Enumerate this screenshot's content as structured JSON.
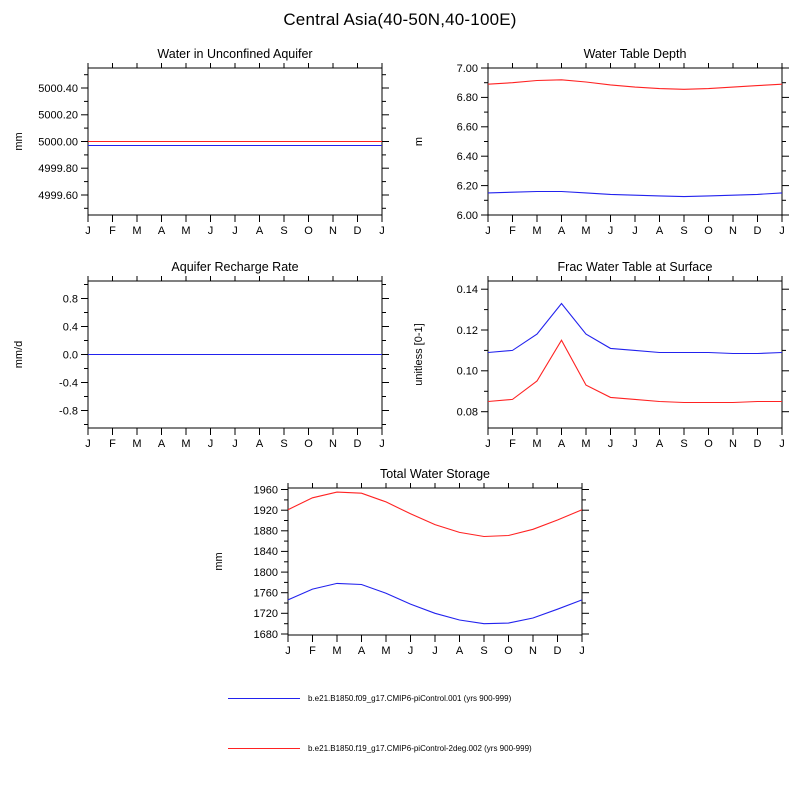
{
  "figure_title": "Central Asia(40-50N,40-100E)",
  "colors": {
    "blue": "#2222ee",
    "red": "#ff2222",
    "axis": "#000000",
    "background": "#ffffff"
  },
  "months": [
    "J",
    "F",
    "M",
    "A",
    "M",
    "J",
    "J",
    "A",
    "S",
    "O",
    "N",
    "D",
    "J"
  ],
  "legend": [
    {
      "color_key": "blue",
      "label": "b.e21.B1850.f09_g17.CMIP6-piControl.001 (yrs 900-999)"
    },
    {
      "color_key": "red",
      "label": "b.e21.B1850.f19_g17.CMIP6-piControl-2deg.002 (yrs 900-999)"
    }
  ],
  "chart_data": [
    {
      "type": "line",
      "title": "Water in Unconfined Aquifer",
      "ylabel": "mm",
      "ylim": [
        4999.45,
        5000.55
      ],
      "yticks": [
        "4999.60",
        "4999.80",
        "5000.00",
        "5000.20",
        "5000.40"
      ],
      "categories": [
        "J",
        "F",
        "M",
        "A",
        "M",
        "J",
        "J",
        "A",
        "S",
        "O",
        "N",
        "D",
        "J"
      ],
      "series": [
        {
          "name": "b.e21.B1850.f09_g17.CMIP6-piControl.001 (yrs 900-999)",
          "color_key": "blue",
          "values": [
            4999.97,
            4999.97,
            4999.97,
            4999.97,
            4999.97,
            4999.97,
            4999.97,
            4999.97,
            4999.97,
            4999.97,
            4999.97,
            4999.97,
            4999.97
          ]
        },
        {
          "name": "b.e21.B1850.f19_g17.CMIP6-piControl-2deg.002 (yrs 900-999)",
          "color_key": "red",
          "values": [
            5000.0,
            5000.0,
            5000.0,
            5000.0,
            5000.0,
            5000.0,
            5000.0,
            5000.0,
            5000.0,
            5000.0,
            5000.0,
            5000.0,
            5000.0
          ]
        }
      ]
    },
    {
      "type": "line",
      "title": "Water Table Depth",
      "ylabel": "m",
      "ylim": [
        6.0,
        7.0
      ],
      "yticks": [
        "6.00",
        "6.20",
        "6.40",
        "6.60",
        "6.80",
        "7.00"
      ],
      "categories": [
        "J",
        "F",
        "M",
        "A",
        "M",
        "J",
        "J",
        "A",
        "S",
        "O",
        "N",
        "D",
        "J"
      ],
      "series": [
        {
          "name": "b.e21.B1850.f09_g17.CMIP6-piControl.001 (yrs 900-999)",
          "color_key": "blue",
          "values": [
            6.15,
            6.155,
            6.16,
            6.16,
            6.15,
            6.14,
            6.135,
            6.13,
            6.125,
            6.13,
            6.135,
            6.14,
            6.15
          ]
        },
        {
          "name": "b.e21.B1850.f19_g17.CMIP6-piControl-2deg.002 (yrs 900-999)",
          "color_key": "red",
          "values": [
            6.89,
            6.9,
            6.915,
            6.92,
            6.905,
            6.885,
            6.87,
            6.86,
            6.855,
            6.86,
            6.87,
            6.88,
            6.89
          ]
        }
      ]
    },
    {
      "type": "line",
      "title": "Aquifer Recharge Rate",
      "ylabel": "mm/d",
      "ylim": [
        -1.05,
        1.05
      ],
      "yticks": [
        "-0.8",
        "-0.4",
        "0.0",
        "0.4",
        "0.8"
      ],
      "categories": [
        "J",
        "F",
        "M",
        "A",
        "M",
        "J",
        "J",
        "A",
        "S",
        "O",
        "N",
        "D",
        "J"
      ],
      "series": [
        {
          "name": "b.e21.B1850.f19_g17.CMIP6-piControl-2deg.002 (yrs 900-999)",
          "color_key": "red",
          "values": [
            0.0,
            0.0,
            0.0,
            0.0,
            0.0,
            0.0,
            0.0,
            0.0,
            0.0,
            0.0,
            0.0,
            0.0,
            0.0
          ]
        },
        {
          "name": "b.e21.B1850.f09_g17.CMIP6-piControl.001 (yrs 900-999)",
          "color_key": "blue",
          "values": [
            0.0,
            0.0,
            0.0,
            0.0,
            0.0,
            0.0,
            0.0,
            0.0,
            0.0,
            0.0,
            0.0,
            0.0,
            0.0
          ]
        }
      ]
    },
    {
      "type": "line",
      "title": "Frac Water Table at Surface",
      "ylabel": "unitless [0-1]",
      "ylim": [
        0.072,
        0.144
      ],
      "yticks": [
        "0.08",
        "0.10",
        "0.12",
        "0.14"
      ],
      "categories": [
        "J",
        "F",
        "M",
        "A",
        "M",
        "J",
        "J",
        "A",
        "S",
        "O",
        "N",
        "D",
        "J"
      ],
      "series": [
        {
          "name": "b.e21.B1850.f09_g17.CMIP6-piControl.001 (yrs 900-999)",
          "color_key": "blue",
          "values": [
            0.109,
            0.11,
            0.118,
            0.133,
            0.118,
            0.111,
            0.11,
            0.109,
            0.109,
            0.109,
            0.1085,
            0.1085,
            0.109
          ]
        },
        {
          "name": "b.e21.B1850.f19_g17.CMIP6-piControl-2deg.002 (yrs 900-999)",
          "color_key": "red",
          "values": [
            0.085,
            0.086,
            0.095,
            0.115,
            0.093,
            0.087,
            0.086,
            0.085,
            0.0845,
            0.0845,
            0.0845,
            0.085,
            0.085
          ]
        }
      ]
    },
    {
      "type": "line",
      "title": "Total Water Storage",
      "ylabel": "mm",
      "ylim": [
        1678,
        1963
      ],
      "yticks": [
        "1680",
        "1720",
        "1760",
        "1800",
        "1840",
        "1880",
        "1920",
        "1960"
      ],
      "categories": [
        "J",
        "F",
        "M",
        "A",
        "M",
        "J",
        "J",
        "A",
        "S",
        "O",
        "N",
        "D",
        "J"
      ],
      "series": [
        {
          "name": "b.e21.B1850.f09_g17.CMIP6-piControl.001 (yrs 900-999)",
          "color_key": "blue",
          "values": [
            1746,
            1767,
            1778,
            1776,
            1759,
            1738,
            1720,
            1707,
            1700,
            1701,
            1711,
            1728,
            1746
          ]
        },
        {
          "name": "b.e21.B1850.f19_g17.CMIP6-piControl-2deg.002 (yrs 900-999)",
          "color_key": "red",
          "values": [
            1921,
            1944,
            1955,
            1953,
            1936,
            1913,
            1892,
            1877,
            1869,
            1871,
            1883,
            1901,
            1921
          ]
        }
      ]
    }
  ]
}
